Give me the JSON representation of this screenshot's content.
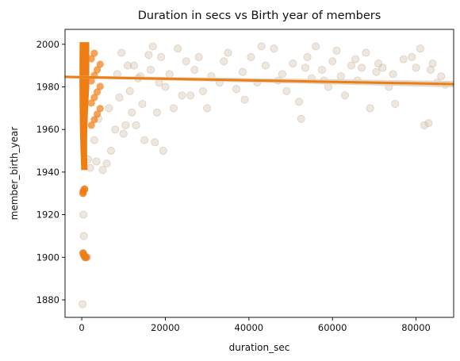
{
  "chart_data": {
    "type": "scatter",
    "title": "Duration in secs vs Birth year of members",
    "xlabel": "duration_sec",
    "ylabel": "member_birth_year",
    "xlim": [
      -4000,
      89000
    ],
    "ylim": [
      1871.8,
      2007
    ],
    "x_ticks": [
      0,
      20000,
      40000,
      60000,
      80000
    ],
    "x_tick_labels": [
      "0",
      "20000",
      "40000",
      "60000",
      "80000"
    ],
    "y_ticks": [
      1880,
      1900,
      1920,
      1940,
      1960,
      1980,
      2000
    ],
    "y_tick_labels": [
      "1880",
      "1900",
      "1920",
      "1940",
      "1960",
      "1980",
      "2000"
    ],
    "grid": false,
    "colors": {
      "points": "#c9b59d",
      "dense_core": "#ee7d13",
      "regression_line": "#ee7d13",
      "confidence_band": "#dcd2c6"
    },
    "regression": {
      "x": [
        -4000,
        89000
      ],
      "y": [
        1984.7,
        1981.3
      ],
      "ci_halfwidth_start": 0.6,
      "ci_halfwidth_end": 1.5
    },
    "dense_region": {
      "x_range": [
        -500,
        1800
      ],
      "y_range": [
        1941,
        2001
      ]
    },
    "series": [
      {
        "points": [
          [
            200,
            1878
          ],
          [
            500,
            1910
          ],
          [
            400,
            1920
          ],
          [
            300,
            1931
          ],
          [
            600,
            1932
          ],
          [
            500,
            1901
          ],
          [
            700,
            1900
          ],
          [
            900,
            1900
          ],
          [
            1300,
            1900
          ],
          [
            400,
            1902
          ],
          [
            5000,
            1941
          ],
          [
            2000,
            1942
          ],
          [
            3500,
            1945
          ],
          [
            1500,
            1946
          ],
          [
            6000,
            1944
          ],
          [
            7000,
            1950
          ],
          [
            3000,
            1955
          ],
          [
            8000,
            1960
          ],
          [
            10000,
            1958
          ],
          [
            13000,
            1962
          ],
          [
            4000,
            1965
          ],
          [
            15000,
            1955
          ],
          [
            17500,
            1954
          ],
          [
            19500,
            1950
          ],
          [
            12000,
            1968
          ],
          [
            18000,
            1968
          ],
          [
            22000,
            1970
          ],
          [
            26000,
            1976
          ],
          [
            25000,
            1992
          ],
          [
            29000,
            1978
          ],
          [
            31000,
            1985
          ],
          [
            33000,
            1982
          ],
          [
            35000,
            1996
          ],
          [
            37000,
            1979
          ],
          [
            38500,
            1987
          ],
          [
            40500,
            1994
          ],
          [
            42000,
            1982
          ],
          [
            44000,
            1990
          ],
          [
            46000,
            1998
          ],
          [
            47000,
            1983
          ],
          [
            49000,
            1978
          ],
          [
            50500,
            1991
          ],
          [
            52000,
            1973
          ],
          [
            52500,
            1965
          ],
          [
            53500,
            1989
          ],
          [
            55000,
            1984
          ],
          [
            56000,
            1999
          ],
          [
            57500,
            1988
          ],
          [
            59000,
            1980
          ],
          [
            60000,
            1992
          ],
          [
            62000,
            1985
          ],
          [
            63000,
            1976
          ],
          [
            64500,
            1990
          ],
          [
            65500,
            1993
          ],
          [
            66000,
            1983
          ],
          [
            68000,
            1996
          ],
          [
            69000,
            1970
          ],
          [
            70500,
            1987
          ],
          [
            72000,
            1989
          ],
          [
            73500,
            1980
          ],
          [
            74500,
            1986
          ],
          [
            79000,
            1994
          ],
          [
            81000,
            1998
          ],
          [
            82000,
            1962
          ],
          [
            83000,
            1963
          ],
          [
            83500,
            1988
          ],
          [
            84000,
            1991
          ],
          [
            85000,
            1982
          ],
          [
            86000,
            1985
          ],
          [
            87000,
            1981
          ],
          [
            9000,
            1975
          ],
          [
            11000,
            1990
          ],
          [
            14000,
            1985
          ],
          [
            16000,
            1995
          ],
          [
            20000,
            1980
          ],
          [
            23000,
            1998
          ],
          [
            27000,
            1988
          ],
          [
            30000,
            1970
          ],
          [
            34000,
            1992
          ],
          [
            39000,
            1974
          ],
          [
            43000,
            1999
          ],
          [
            48000,
            1986
          ],
          [
            54000,
            1994
          ],
          [
            58000,
            1983
          ],
          [
            61000,
            1997
          ],
          [
            67000,
            1989
          ],
          [
            71000,
            1991
          ],
          [
            75000,
            1972
          ],
          [
            77000,
            1993
          ],
          [
            80000,
            1989
          ],
          [
            6500,
            1970
          ],
          [
            8500,
            1986
          ],
          [
            9500,
            1996
          ],
          [
            10500,
            1962
          ],
          [
            11500,
            1978
          ],
          [
            12500,
            1990
          ],
          [
            13500,
            1984
          ],
          [
            14500,
            1972
          ],
          [
            16500,
            1988
          ],
          [
            17000,
            1999
          ],
          [
            18500,
            1982
          ],
          [
            19000,
            1994
          ],
          [
            21000,
            1986
          ],
          [
            24000,
            1976
          ],
          [
            28000,
            1994
          ]
        ]
      }
    ]
  }
}
